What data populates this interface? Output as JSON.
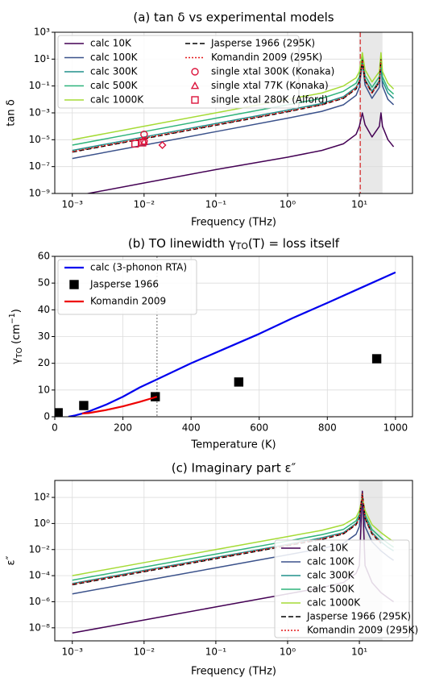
{
  "chart_data": [
    {
      "type": "line",
      "title": "(a) tan δ vs experimental models",
      "xlabel": "Frequency (THz)",
      "ylabel": "tan δ",
      "xscale": "log",
      "yscale": "log",
      "xlim": [
        0.00057,
        55
      ],
      "ylim": [
        1e-09,
        1000
      ],
      "xticks": [
        {
          "value": 0.001,
          "label": "10⁻³"
        },
        {
          "value": 0.01,
          "label": "10⁻²"
        },
        {
          "value": 0.1,
          "label": "10⁻¹"
        },
        {
          "value": 1,
          "label": "10⁰"
        },
        {
          "value": 10,
          "label": "10¹"
        }
      ],
      "yticks": [
        {
          "value": 1e-09,
          "label": "10⁻⁹"
        },
        {
          "value": 1e-07,
          "label": "10⁻⁷"
        },
        {
          "value": 1e-05,
          "label": "10⁻⁵"
        },
        {
          "value": 0.001,
          "label": "10⁻³"
        },
        {
          "value": 0.1,
          "label": "10⁻¹"
        },
        {
          "value": 10,
          "label": "10¹"
        },
        {
          "value": 1000,
          "label": "10³"
        }
      ],
      "grid": true,
      "legend": "upper left",
      "legend_columns": 2,
      "vline": 10.3,
      "vline_color": "#d62728",
      "vline_style": "dashed",
      "shade": [
        10.2,
        21
      ],
      "x": [
        0.001,
        0.01,
        0.1,
        1,
        3,
        6,
        9,
        10,
        11,
        12,
        15,
        19,
        20,
        21,
        25,
        30
      ],
      "series": [
        {
          "name": "calc 10K",
          "color": "#440154",
          "style": "solid",
          "values": [
            6e-10,
            6e-09,
            6e-08,
            5e-07,
            1.6e-06,
            5e-06,
            2.5e-05,
            0.0001,
            0.001,
            0.00013,
            1.6e-05,
            0.0001,
            0.001,
            0.0001,
            1e-05,
            3e-06
          ]
        },
        {
          "name": "calc 100K",
          "color": "#3b528b",
          "style": "solid",
          "values": [
            4e-07,
            4e-06,
            4e-05,
            0.0004,
            0.0013,
            0.004,
            0.02,
            0.08,
            6,
            0.12,
            0.012,
            0.08,
            6,
            0.1,
            0.01,
            0.004
          ]
        },
        {
          "name": "calc 300K",
          "color": "#21918c",
          "style": "solid",
          "values": [
            1.6e-06,
            1.6e-05,
            0.00016,
            0.0016,
            0.005,
            0.016,
            0.08,
            0.25,
            10,
            0.3,
            0.04,
            0.25,
            10,
            0.25,
            0.03,
            0.012
          ]
        },
        {
          "name": "calc 500K",
          "color": "#2fb47c",
          "style": "solid",
          "values": [
            4e-06,
            4e-05,
            0.0004,
            0.004,
            0.012,
            0.04,
            0.16,
            0.5,
            16,
            0.6,
            0.08,
            0.5,
            16,
            0.5,
            0.06,
            0.025
          ]
        },
        {
          "name": "calc 1000K",
          "color": "#a5db36",
          "style": "solid",
          "values": [
            1e-05,
            0.0001,
            0.001,
            0.01,
            0.03,
            0.1,
            0.4,
            1.2,
            30,
            1.6,
            0.2,
            1.2,
            30,
            1.2,
            0.16,
            0.06
          ]
        },
        {
          "name": "Jasperse 1966 (295K)",
          "color": "#000000",
          "style": "dashed",
          "values": [
            1.2e-06,
            1.2e-05,
            0.00012,
            0.0012,
            0.004,
            0.012,
            0.06,
            0.2,
            8,
            0.25,
            0.03,
            0.2,
            10,
            null,
            null,
            null
          ]
        },
        {
          "name": "Komandin 2009 (295K)",
          "color": "#e41a1c",
          "style": "dotted",
          "values": [
            1.3e-06,
            1.3e-05,
            0.00013,
            0.0013,
            0.004,
            0.013,
            0.065,
            0.2,
            8,
            0.25,
            0.03,
            0.2,
            8,
            null,
            null,
            null
          ]
        },
        {
          "name": "single xtal 300K (Konaka)",
          "color": "#dc143c",
          "marker": "circle",
          "x": [
            0.01,
            0.01
          ],
          "values": [
            2.5e-05,
            8e-06
          ]
        },
        {
          "name": "single xtal 77K (Konaka)",
          "color": "#dc143c",
          "marker": "triangle",
          "x": [
            0.01
          ],
          "values": [
            7e-06
          ]
        },
        {
          "name": "single xtal 280K (Alford)",
          "color": "#dc143c",
          "marker": "square",
          "x": [
            0.0075,
            0.0095
          ],
          "values": [
            5e-06,
            6e-06
          ]
        },
        {
          "color": "#dc143c",
          "marker": "diamond",
          "x": [
            0.018
          ],
          "values": [
            4e-06
          ]
        }
      ]
    },
    {
      "type": "line",
      "title": [
        {
          "text": "(b) TO linewidth γ"
        },
        {
          "text": "TO",
          "shift": "sub"
        },
        {
          "text": "(T) = loss itself"
        }
      ],
      "xlabel": "Temperature (K)",
      "ylabel": [
        {
          "text": "γ"
        },
        {
          "text": "TO",
          "shift": "sub"
        },
        {
          "text": " (cm"
        },
        {
          "text": "−1",
          "shift": "super"
        },
        {
          "text": ")"
        }
      ],
      "xscale": "linear",
      "yscale": "linear",
      "xlim": [
        0,
        1050
      ],
      "ylim": [
        0,
        60
      ],
      "xticks": [
        0,
        200,
        400,
        600,
        800,
        1000
      ],
      "yticks": [
        0,
        10,
        20,
        30,
        40,
        50,
        60
      ],
      "grid": true,
      "legend": "upper left",
      "legend_columns": 1,
      "vline": 300,
      "vline_color": "#808080",
      "vline_style": "dotted",
      "series": [
        {
          "name": "calc (3-phonon RTA)",
          "color": "#0000ee",
          "style": "solid",
          "x": [
            40,
            60,
            80,
            100,
            150,
            200,
            250,
            300,
            400,
            500,
            600,
            700,
            800,
            900,
            1000
          ],
          "values": [
            0,
            0.5,
            1.2,
            2,
            4.5,
            7.5,
            11,
            14,
            20,
            25.5,
            31,
            37,
            42.6,
            48.3,
            54
          ]
        },
        {
          "name": "Jasperse 1966",
          "color": "#000000",
          "marker": "square",
          "filled": true,
          "x": [
            10,
            85,
            295,
            540,
            945
          ],
          "values": [
            1.5,
            4.2,
            7.5,
            13,
            21.7
          ]
        },
        {
          "name": "Komandin 2009",
          "color": "#ee0000",
          "style": "solid",
          "x": [
            80,
            100,
            150,
            200,
            250,
            300
          ],
          "values": [
            1.2,
            1.4,
            2.5,
            3.9,
            5.6,
            7.5
          ]
        }
      ]
    },
    {
      "type": "line",
      "title": "(c) Imaginary part ε″",
      "xlabel": "Frequency (THz)",
      "ylabel": "ε″",
      "xscale": "log",
      "yscale": "log",
      "xlim": [
        0.00057,
        55
      ],
      "ylim": [
        1e-09,
        2000
      ],
      "xticks": [
        {
          "value": 0.001,
          "label": "10⁻³"
        },
        {
          "value": 0.01,
          "label": "10⁻²"
        },
        {
          "value": 0.1,
          "label": "10⁻¹"
        },
        {
          "value": 1,
          "label": "10⁰"
        },
        {
          "value": 10,
          "label": "10¹"
        }
      ],
      "yticks": [
        {
          "value": 1e-08,
          "label": "10⁻⁸"
        },
        {
          "value": 1e-06,
          "label": "10⁻⁶"
        },
        {
          "value": 0.0001,
          "label": "10⁻⁴"
        },
        {
          "value": 0.01,
          "label": "10⁻²"
        },
        {
          "value": 1,
          "label": "10⁰"
        },
        {
          "value": 100,
          "label": "10²"
        }
      ],
      "grid": true,
      "legend": "lower right",
      "legend_columns": 1,
      "shade": [
        10.2,
        21
      ],
      "x": [
        0.001,
        0.01,
        0.1,
        1,
        3,
        6,
        9,
        10,
        11,
        12,
        15,
        20,
        25,
        30
      ],
      "series": [
        {
          "name": "calc 10K",
          "color": "#440154",
          "style": "solid",
          "values": [
            4e-09,
            4e-08,
            4e-07,
            4e-06,
            1.2e-05,
            3e-05,
            0.00015,
            0.0006,
            300,
            0.0006,
            3e-05,
            5e-06,
            2e-06,
            1e-06
          ]
        },
        {
          "name": "calc 100K",
          "color": "#3b528b",
          "style": "solid",
          "values": [
            4e-06,
            4e-05,
            0.0004,
            0.004,
            0.012,
            0.03,
            0.15,
            0.6,
            200,
            0.6,
            0.04,
            0.008,
            0.003,
            0.0015
          ]
        },
        {
          "name": "calc 300K",
          "color": "#21918c",
          "style": "solid",
          "values": [
            2.5e-05,
            0.00025,
            0.0025,
            0.025,
            0.08,
            0.2,
            1,
            3,
            150,
            3,
            0.2,
            0.04,
            0.015,
            0.008
          ]
        },
        {
          "name": "calc 500K",
          "color": "#2fb47c",
          "style": "solid",
          "values": [
            4.5e-05,
            0.00045,
            0.0045,
            0.045,
            0.14,
            0.35,
            1.6,
            5,
            120,
            5,
            0.35,
            0.08,
            0.03,
            0.015
          ]
        },
        {
          "name": "calc 1000K",
          "color": "#a5db36",
          "style": "solid",
          "values": [
            0.0001,
            0.001,
            0.01,
            0.1,
            0.3,
            0.8,
            3,
            10,
            100,
            10,
            0.8,
            0.2,
            0.08,
            0.04
          ]
        },
        {
          "name": "Jasperse 1966 (295K)",
          "color": "#000000",
          "style": "dashed",
          "values": [
            2e-05,
            0.0002,
            0.002,
            0.02,
            0.06,
            0.16,
            0.8,
            2.5,
            200,
            2.5,
            0.16,
            0.03,
            null,
            null
          ]
        },
        {
          "name": "Komandin 2009 (295K)",
          "color": "#e41a1c",
          "style": "dotted",
          "values": [
            2.2e-05,
            0.00022,
            0.0022,
            0.022,
            0.066,
            0.17,
            0.85,
            2.6,
            180,
            2.6,
            0.17,
            0.032,
            null,
            null
          ]
        }
      ]
    }
  ]
}
